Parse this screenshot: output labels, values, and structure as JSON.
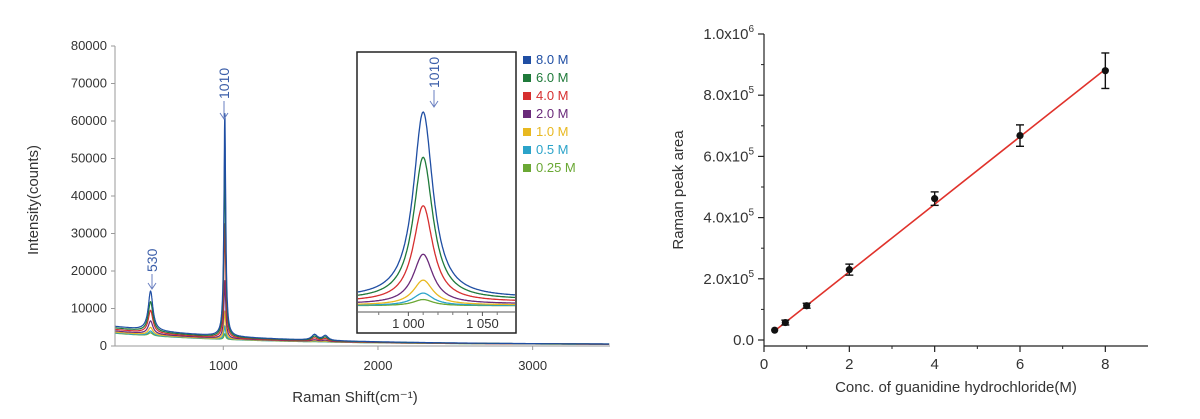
{
  "chart_data": [
    {
      "type": "line",
      "title": "",
      "xlabel": "Raman Shift(cm⁻¹)",
      "ylabel": "Intensity(counts)",
      "xlim": [
        300,
        3500
      ],
      "ylim": [
        0,
        80000
      ],
      "x_ticks": [
        "1000",
        "2000",
        "3000"
      ],
      "x_tick_values": [
        1000,
        2000,
        3000
      ],
      "y_ticks": [
        "0",
        "10000",
        "20000",
        "30000",
        "40000",
        "50000",
        "60000",
        "70000",
        "80000"
      ],
      "y_tick_values": [
        0,
        10000,
        20000,
        30000,
        40000,
        50000,
        60000,
        70000,
        80000
      ],
      "series": [
        {
          "name": "8.0 M",
          "color": "#1f4ea3",
          "peak_1010": 60000,
          "peak_530": 13000,
          "baseline_300": 4800
        },
        {
          "name": "6.0 M",
          "color": "#1f7a3a",
          "peak_1010": 46000,
          "peak_530": 10500,
          "baseline_300": 4400
        },
        {
          "name": "4.0 M",
          "color": "#d62f2f",
          "peak_1010": 31000,
          "peak_530": 8500,
          "baseline_300": 4000
        },
        {
          "name": "2.0 M",
          "color": "#6a2a7a",
          "peak_1010": 16000,
          "peak_530": 6000,
          "baseline_300": 3600
        },
        {
          "name": "1.0 M",
          "color": "#e8b820",
          "peak_1010": 8000,
          "peak_530": 4500,
          "baseline_300": 3300
        },
        {
          "name": "0.5 M",
          "color": "#2ba3c9",
          "peak_1010": 4000,
          "peak_530": 3700,
          "baseline_300": 3100
        },
        {
          "name": "0.25 M",
          "color": "#6aa834",
          "peak_1010": 2000,
          "peak_530": 3300,
          "baseline_300": 3000
        }
      ],
      "annotations": [
        {
          "text": "1010",
          "x": 1010,
          "y": 60000,
          "color": "#3a5da8"
        },
        {
          "text": "530",
          "x": 530,
          "y": 13000,
          "color": "#3a5da8"
        }
      ],
      "inset": {
        "x_ticks": [
          "1 000",
          "1 050"
        ],
        "x_tick_values": [
          1000,
          1050
        ],
        "xlim": [
          966,
          1072
        ],
        "annotation": {
          "text": "1010",
          "x": 1010
        }
      }
    },
    {
      "type": "scatter",
      "title": "",
      "xlabel": "Conc. of guanidine hydrochloride(M)",
      "ylabel": "Raman peak area",
      "xlim": [
        0,
        9
      ],
      "ylim": [
        0,
        1000000
      ],
      "x_ticks": [
        "0",
        "2",
        "4",
        "6",
        "8"
      ],
      "x_tick_values": [
        0,
        2,
        4,
        6,
        8
      ],
      "y_ticks": [
        {
          "value": 0,
          "mant": "0.0",
          "exp": ""
        },
        {
          "value": 200000,
          "mant": "2.0x10",
          "exp": "5"
        },
        {
          "value": 400000,
          "mant": "4.0x10",
          "exp": "5"
        },
        {
          "value": 600000,
          "mant": "6.0x10",
          "exp": "5"
        },
        {
          "value": 800000,
          "mant": "8.0x10",
          "exp": "5"
        },
        {
          "value": 1000000,
          "mant": "1.0x10",
          "exp": "6"
        }
      ],
      "points": [
        {
          "x": 0.25,
          "y": 32000,
          "err": 0
        },
        {
          "x": 0.5,
          "y": 57000,
          "err": 8000
        },
        {
          "x": 1.0,
          "y": 112000,
          "err": 8000
        },
        {
          "x": 2.0,
          "y": 230000,
          "err": 18000
        },
        {
          "x": 4.0,
          "y": 462000,
          "err": 22000
        },
        {
          "x": 6.0,
          "y": 668000,
          "err": 35000
        },
        {
          "x": 8.0,
          "y": 880000,
          "err": 58000
        }
      ],
      "fit_line": {
        "x": [
          0.25,
          8.0
        ],
        "y": [
          30000,
          885000
        ],
        "color": "#e0322b"
      },
      "point_color": "#111111"
    }
  ]
}
